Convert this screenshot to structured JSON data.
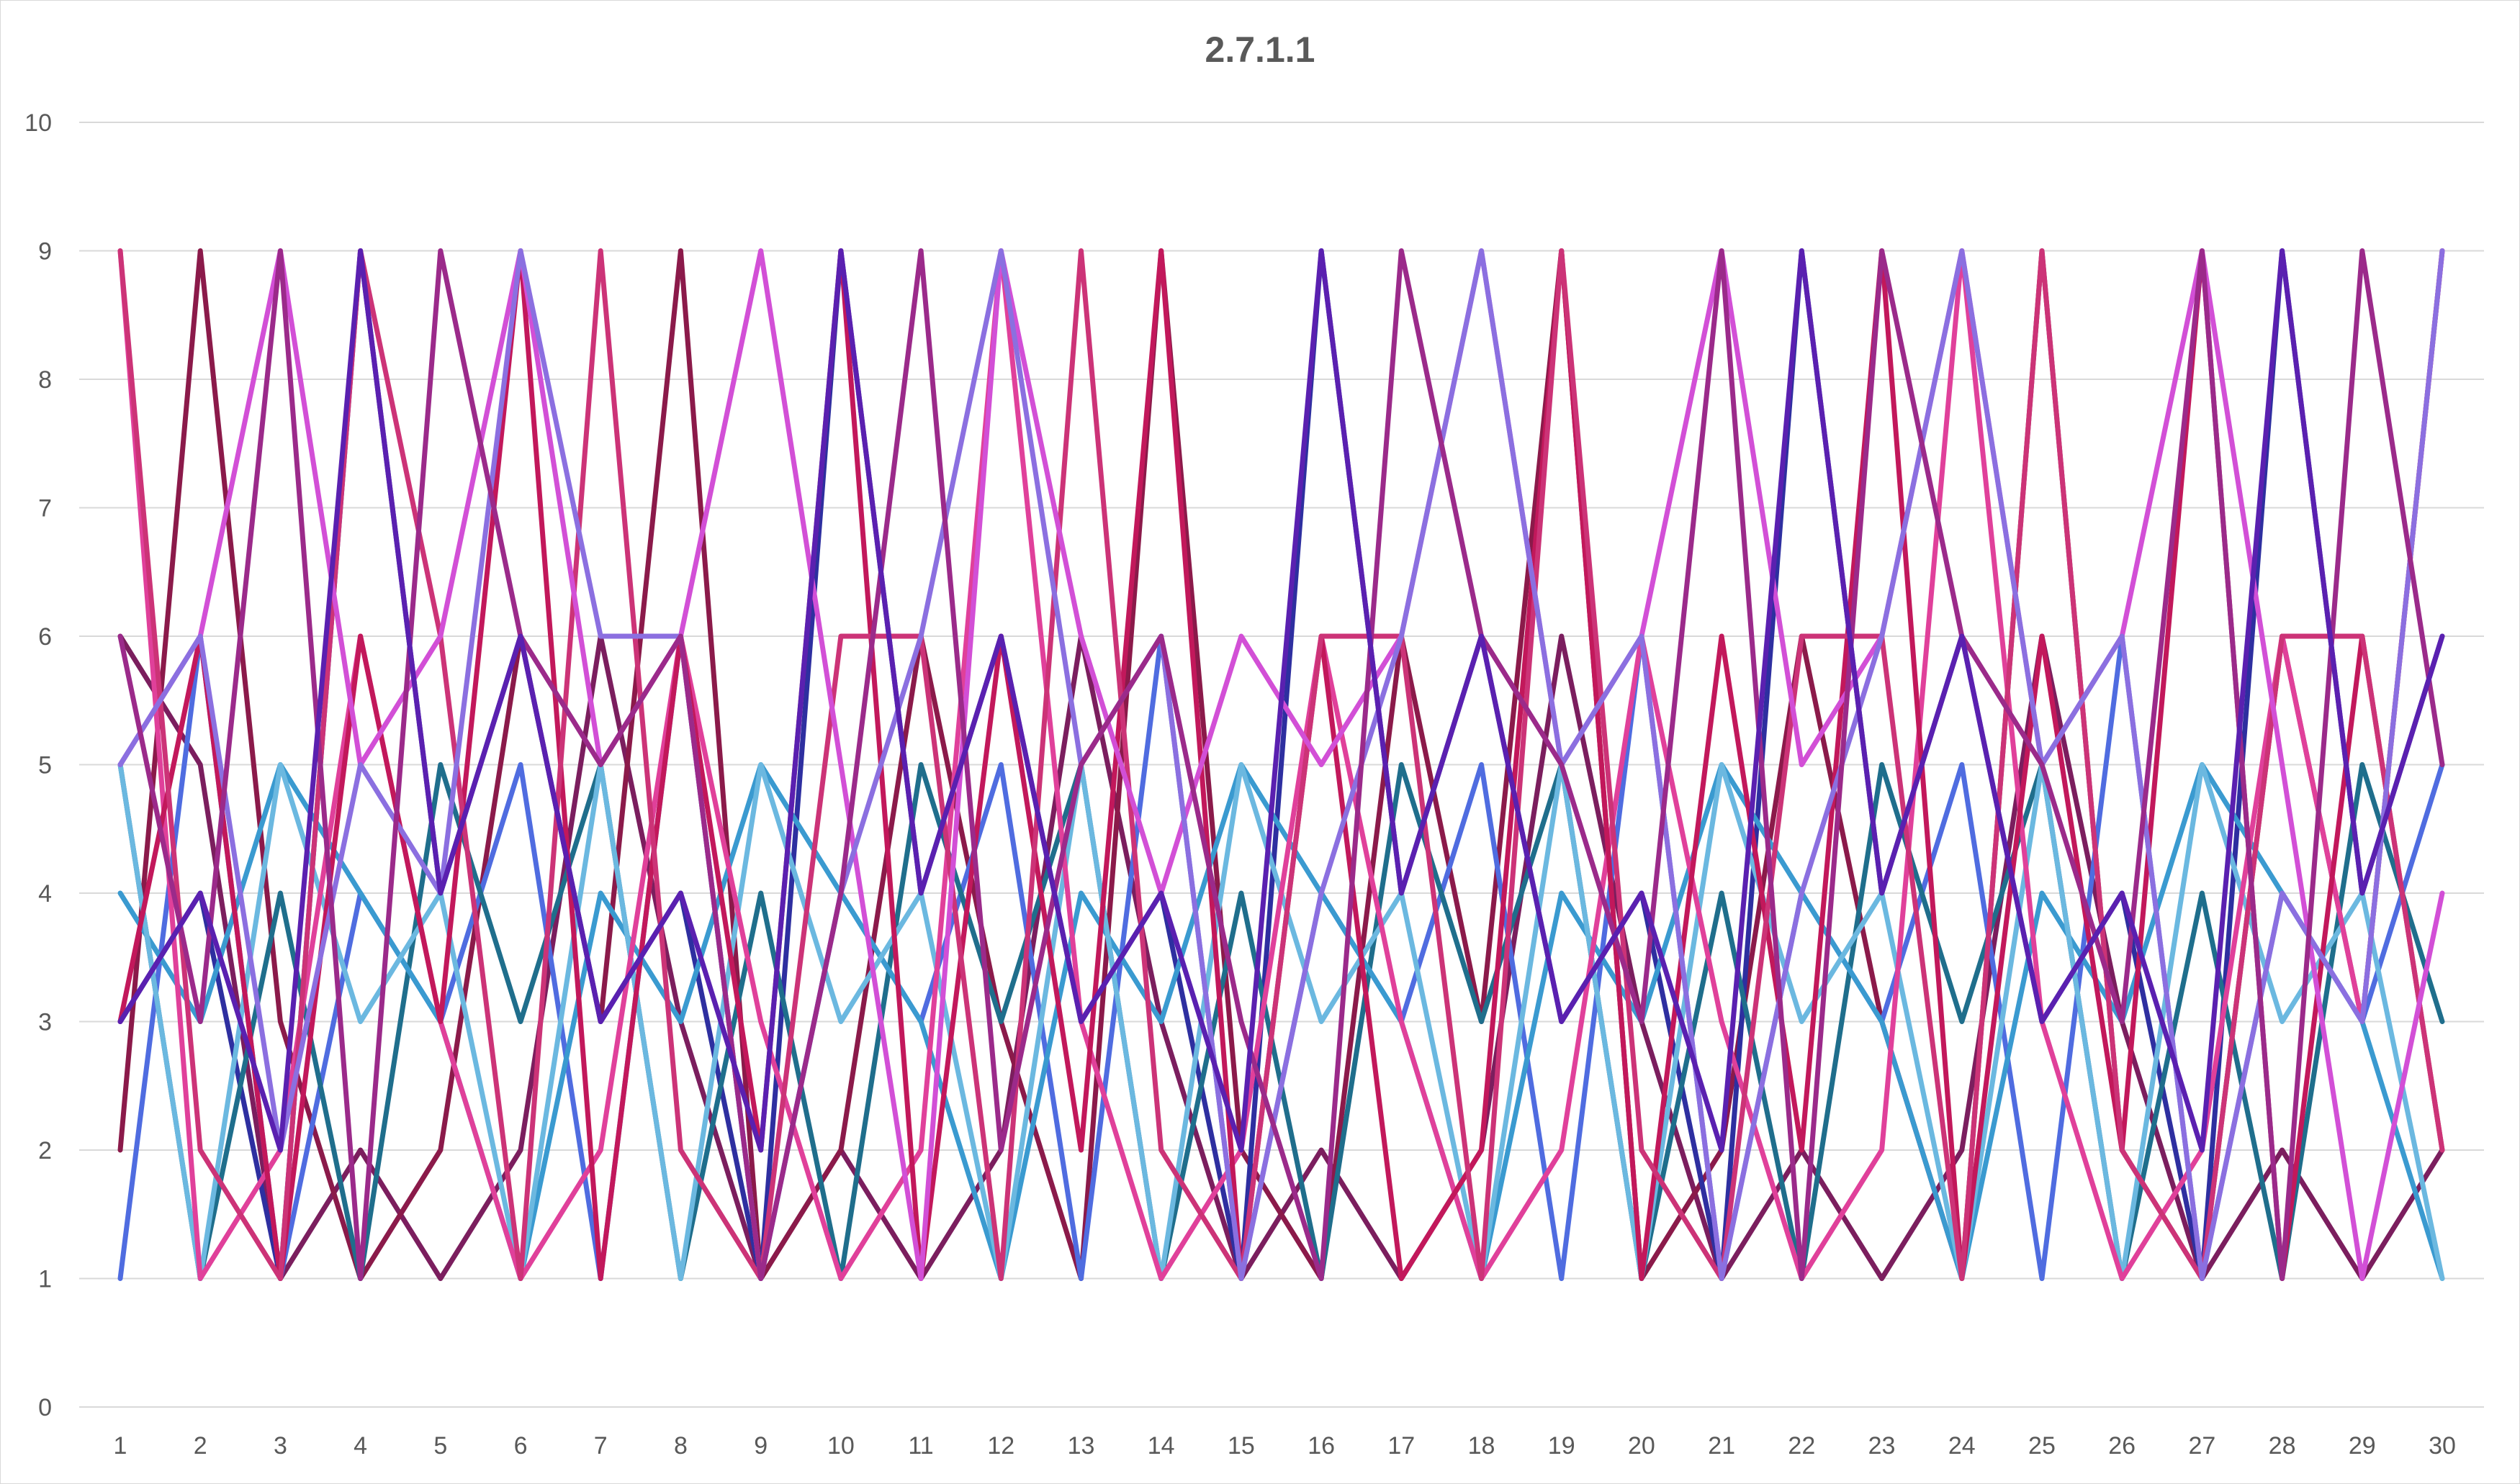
{
  "chart_data": {
    "type": "line",
    "title": "2.7.1.1",
    "xlabel": "",
    "ylabel": "",
    "ylim": [
      0,
      10
    ],
    "yticks": [
      0,
      1,
      2,
      3,
      4,
      5,
      6,
      7,
      8,
      9,
      10
    ],
    "categories": [
      "1",
      "2",
      "3",
      "4",
      "5",
      "6",
      "7",
      "8",
      "9",
      "10",
      "11",
      "12",
      "13",
      "14",
      "15",
      "16",
      "17",
      "18",
      "19",
      "20",
      "21",
      "22",
      "23",
      "24",
      "25",
      "26",
      "27",
      "28",
      "29",
      "30"
    ],
    "grid": true,
    "legend": "none",
    "series": [
      {
        "color": "#7B1E5E",
        "values": [
          6,
          5,
          1,
          2,
          1,
          2,
          6,
          3,
          1,
          2,
          1,
          2,
          6,
          3,
          1,
          2,
          1,
          2,
          6,
          3,
          1,
          2,
          1,
          2,
          6,
          3,
          1,
          2,
          1,
          2
        ]
      },
      {
        "color": "#8B1A4A",
        "values": [
          2,
          9,
          3,
          1,
          2,
          6,
          3,
          9,
          1,
          2,
          6,
          3,
          1,
          9,
          2,
          1,
          6,
          3,
          9,
          1,
          2,
          6,
          3,
          1,
          9,
          2,
          1,
          6,
          3,
          9
        ]
      },
      {
        "color": "#2E2FA0",
        "values": [
          3,
          4,
          1,
          9,
          4,
          6,
          3,
          4,
          1,
          9,
          4,
          6,
          3,
          4,
          1,
          9,
          4,
          6,
          3,
          4,
          1,
          9,
          4,
          6,
          3,
          4,
          1,
          9,
          4,
          6
        ]
      },
      {
        "color": "#4F6CE0",
        "values": [
          1,
          6,
          1,
          4,
          3,
          5,
          1,
          6,
          1,
          4,
          3,
          5,
          1,
          6,
          1,
          4,
          3,
          5,
          1,
          6,
          1,
          4,
          3,
          5,
          1,
          6,
          1,
          4,
          3,
          5
        ]
      },
      {
        "color": "#1F6E8C",
        "values": [
          5,
          1,
          4,
          1,
          5,
          3,
          5,
          1,
          4,
          1,
          5,
          3,
          5,
          1,
          4,
          1,
          5,
          3,
          5,
          1,
          4,
          1,
          5,
          3,
          5,
          1,
          4,
          1,
          5,
          3
        ]
      },
      {
        "color": "#3A9AD0",
        "values": [
          4,
          3,
          5,
          4,
          3,
          1,
          4,
          3,
          5,
          4,
          3,
          1,
          4,
          3,
          5,
          4,
          3,
          1,
          4,
          3,
          5,
          4,
          3,
          1,
          4,
          3,
          5,
          4,
          3,
          1
        ]
      },
      {
        "color": "#6BB8E0",
        "values": [
          5,
          1,
          5,
          3,
          4,
          1,
          5,
          1,
          5,
          3,
          4,
          1,
          5,
          1,
          5,
          3,
          4,
          1,
          5,
          1,
          5,
          3,
          4,
          1,
          5,
          1,
          5,
          3,
          4,
          1
        ]
      },
      {
        "color": "#E0409A",
        "values": [
          9,
          1,
          2,
          6,
          3,
          1,
          2,
          6,
          3,
          1,
          2,
          9,
          3,
          1,
          2,
          6,
          3,
          1,
          2,
          6,
          3,
          1,
          2,
          9,
          3,
          1,
          2,
          6,
          3,
          9
        ]
      },
      {
        "color": "#C2185B",
        "values": [
          3,
          6,
          1,
          6,
          3,
          9,
          1,
          6,
          2,
          9,
          1,
          6,
          2,
          9,
          1,
          6,
          1,
          2,
          9,
          1,
          6,
          2,
          9,
          1,
          6,
          2,
          9,
          1,
          6,
          2
        ]
      },
      {
        "color": "#CC3377",
        "values": [
          9,
          2,
          1,
          9,
          6,
          1,
          9,
          2,
          1,
          6,
          6,
          1,
          9,
          2,
          1,
          6,
          6,
          1,
          9,
          2,
          1,
          6,
          6,
          1,
          9,
          2,
          1,
          6,
          6,
          2
        ]
      },
      {
        "color": "#D24FD6",
        "values": [
          5,
          6,
          9,
          5,
          6,
          9,
          5,
          6,
          9,
          5,
          1,
          9,
          6,
          4,
          6,
          5,
          6,
          9,
          5,
          6,
          9,
          5,
          6,
          9,
          5,
          6,
          9,
          5,
          1,
          4
        ]
      },
      {
        "color": "#8B6FE0",
        "values": [
          5,
          6,
          2,
          5,
          4,
          9,
          6,
          6,
          1,
          4,
          6,
          9,
          5,
          6,
          1,
          4,
          6,
          9,
          5,
          6,
          1,
          4,
          6,
          9,
          5,
          6,
          1,
          4,
          3,
          9
        ]
      },
      {
        "color": "#9B2A8A",
        "values": [
          6,
          3,
          9,
          1,
          9,
          6,
          5,
          6,
          1,
          4,
          9,
          2,
          5,
          6,
          3,
          1,
          9,
          6,
          5,
          3,
          9,
          1,
          9,
          6,
          5,
          3,
          9,
          1,
          9,
          5
        ]
      },
      {
        "color": "#5A20B0",
        "values": [
          3,
          4,
          2,
          9,
          4,
          6,
          3,
          4,
          2,
          9,
          4,
          6,
          3,
          4,
          2,
          9,
          4,
          6,
          3,
          4,
          2,
          9,
          4,
          6,
          3,
          4,
          2,
          9,
          4,
          6
        ]
      }
    ]
  }
}
